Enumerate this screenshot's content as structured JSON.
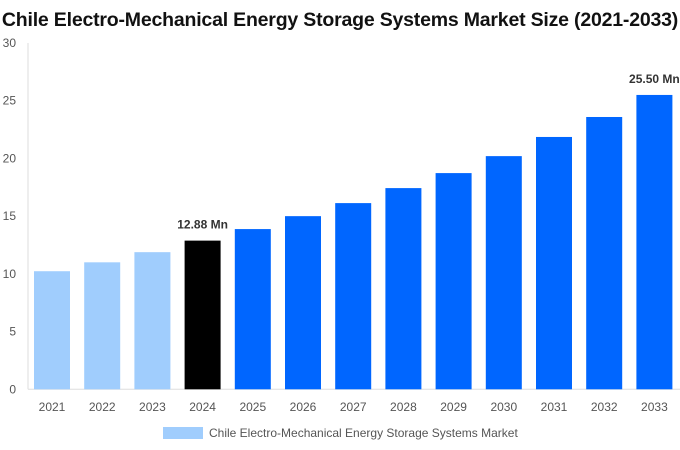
{
  "chart_data": {
    "type": "bar",
    "title": "Chile Electro-Mechanical Energy Storage Systems Market Size (2021-2033)",
    "xlabel": "",
    "ylabel": "",
    "ylim": [
      0,
      30
    ],
    "yticks": [
      "0",
      "5",
      "10",
      "15",
      "20",
      "25",
      "30"
    ],
    "grid": false,
    "legend_position": "bottom",
    "categories": [
      "2021",
      "2022",
      "2023",
      "2024",
      "2025",
      "2026",
      "2027",
      "2028",
      "2029",
      "2030",
      "2031",
      "2032",
      "2033"
    ],
    "series": [
      {
        "name": "Chile Electro-Mechanical Energy Storage Systems Market",
        "values": [
          10.23,
          11.0,
          11.88,
          12.88,
          13.88,
          15.0,
          16.13,
          17.43,
          18.73,
          20.2,
          21.86,
          23.59,
          25.5
        ]
      }
    ],
    "bar_colors": {
      "historical": "#a0cdfd",
      "base_year": "#000000",
      "forecast": "#0066ff"
    },
    "data_labels": [
      {
        "category": "2024",
        "text": "12.88 Mn"
      },
      {
        "category": "2033",
        "text": "25.50 Mn"
      }
    ]
  }
}
